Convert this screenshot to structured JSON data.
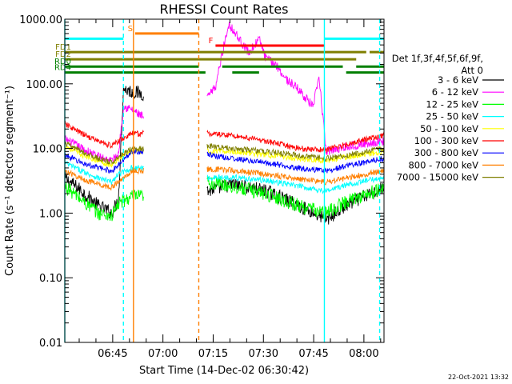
{
  "chart_data": {
    "type": "line",
    "title": "RHESSI Count Rates",
    "xlabel": "Start Time (14-Dec-02 06:30:42)",
    "ylabel": "Count Rate (s⁻¹ detector segment⁻¹)",
    "yscale": "log",
    "ylim": [
      0.01,
      1000
    ],
    "xlim_minutes": [
      0,
      95.3
    ],
    "x_ticks": [
      "06:45",
      "07:00",
      "07:15",
      "07:30",
      "07:45",
      "08:00"
    ],
    "y_ticks": [
      "0.01",
      "0.10",
      "1.00",
      "10.00",
      "100.00",
      "1000.00"
    ],
    "grid": false,
    "legend_placement": "right",
    "legend_header": [
      "Det 1f,3f,4f,5f,6f,9f,",
      "Att 0"
    ],
    "footer_date": "22-Oct-2021 13:32",
    "data_gaps": [
      [
        23.5,
        42.5
      ]
    ],
    "series": [
      {
        "name": "3 - 6 keV",
        "color": "#000000",
        "points": [
          [
            0,
            3.5
          ],
          [
            5,
            2.2
          ],
          [
            10,
            1.3
          ],
          [
            14,
            1.0
          ],
          [
            16,
            1.6
          ],
          [
            17.5,
            85
          ],
          [
            20,
            75
          ],
          [
            23.5,
            70
          ],
          [
            42.5,
            2.2
          ],
          [
            50,
            2.8
          ],
          [
            60,
            2.2
          ],
          [
            70,
            1.3
          ],
          [
            78,
            0.8
          ],
          [
            85,
            1.4
          ],
          [
            95.3,
            2.5
          ]
        ]
      },
      {
        "name": "6 - 12 keV",
        "color": "#ff00ff",
        "points": [
          [
            0,
            14
          ],
          [
            5,
            10
          ],
          [
            10,
            7.5
          ],
          [
            14,
            6.5
          ],
          [
            16,
            8
          ],
          [
            17.5,
            45
          ],
          [
            20,
            40
          ],
          [
            23.5,
            30
          ],
          [
            42.5,
            60
          ],
          [
            45,
            90
          ],
          [
            47,
            300
          ],
          [
            49,
            850
          ],
          [
            52,
            500
          ],
          [
            55,
            300
          ],
          [
            58,
            500
          ],
          [
            60,
            250
          ],
          [
            63,
            200
          ],
          [
            66,
            120
          ],
          [
            70,
            80
          ],
          [
            72,
            60
          ],
          [
            74,
            45
          ],
          [
            76,
            120
          ],
          [
            78,
            9
          ],
          [
            85,
            11
          ],
          [
            95.3,
            13
          ]
        ]
      },
      {
        "name": "12 - 25 keV",
        "color": "#00ff00",
        "points": [
          [
            0,
            2.6
          ],
          [
            5,
            1.6
          ],
          [
            10,
            1.0
          ],
          [
            14,
            0.9
          ],
          [
            16,
            1.4
          ],
          [
            20,
            1.8
          ],
          [
            23.5,
            1.8
          ],
          [
            42.5,
            3.0
          ],
          [
            50,
            2.6
          ],
          [
            60,
            2.0
          ],
          [
            70,
            1.3
          ],
          [
            78,
            1.0
          ],
          [
            85,
            1.6
          ],
          [
            95.3,
            2.4
          ]
        ]
      },
      {
        "name": "25 - 50 keV",
        "color": "#00ffff",
        "points": [
          [
            0,
            6
          ],
          [
            5,
            4.5
          ],
          [
            10,
            3.5
          ],
          [
            14,
            3.0
          ],
          [
            16,
            4
          ],
          [
            20,
            5
          ],
          [
            23.5,
            5
          ],
          [
            42.5,
            3.5
          ],
          [
            50,
            3.6
          ],
          [
            60,
            3.2
          ],
          [
            70,
            2.6
          ],
          [
            78,
            2.2
          ],
          [
            85,
            2.8
          ],
          [
            95.3,
            3.6
          ]
        ]
      },
      {
        "name": "50 - 100 keV",
        "color": "#ffff00",
        "points": [
          [
            0,
            11
          ],
          [
            5,
            8
          ],
          [
            10,
            6.5
          ],
          [
            14,
            5.5
          ],
          [
            16,
            7
          ],
          [
            20,
            9
          ],
          [
            23.5,
            9
          ],
          [
            42.5,
            9
          ],
          [
            50,
            9
          ],
          [
            60,
            8
          ],
          [
            70,
            7
          ],
          [
            78,
            6.5
          ],
          [
            85,
            7.5
          ],
          [
            95.3,
            9
          ]
        ]
      },
      {
        "name": "100 - 300 keV",
        "color": "#ff0000",
        "points": [
          [
            0,
            24
          ],
          [
            5,
            17
          ],
          [
            10,
            13
          ],
          [
            14,
            11
          ],
          [
            16,
            13
          ],
          [
            20,
            17
          ],
          [
            23.5,
            17
          ],
          [
            42.5,
            17
          ],
          [
            50,
            16
          ],
          [
            60,
            13
          ],
          [
            70,
            10
          ],
          [
            78,
            9.5
          ],
          [
            85,
            12
          ],
          [
            95.3,
            16
          ]
        ]
      },
      {
        "name": "300 - 800 keV",
        "color": "#0000ff",
        "points": [
          [
            0,
            8
          ],
          [
            5,
            6
          ],
          [
            10,
            5
          ],
          [
            14,
            4.5
          ],
          [
            16,
            5.5
          ],
          [
            20,
            9
          ],
          [
            23.5,
            9
          ],
          [
            42.5,
            8
          ],
          [
            50,
            7
          ],
          [
            60,
            6
          ],
          [
            70,
            5
          ],
          [
            78,
            4.5
          ],
          [
            85,
            5.5
          ],
          [
            95.3,
            7
          ]
        ]
      },
      {
        "name": "800 - 7000 keV",
        "color": "#ff7f00",
        "points": [
          [
            0,
            4.5
          ],
          [
            5,
            3.4
          ],
          [
            10,
            2.8
          ],
          [
            14,
            2.5
          ],
          [
            16,
            3
          ],
          [
            20,
            4.5
          ],
          [
            23.5,
            4.5
          ],
          [
            42.5,
            4.8
          ],
          [
            50,
            4.6
          ],
          [
            60,
            4
          ],
          [
            70,
            3.4
          ],
          [
            78,
            3
          ],
          [
            85,
            3.6
          ],
          [
            95.3,
            4.5
          ]
        ]
      },
      {
        "name": "7000 - 15000 keV",
        "color": "#7f7f00",
        "points": [
          [
            0,
            12
          ],
          [
            5,
            9
          ],
          [
            10,
            7
          ],
          [
            14,
            6
          ],
          [
            16,
            7.5
          ],
          [
            20,
            10
          ],
          [
            23.5,
            10
          ],
          [
            42.5,
            11
          ],
          [
            50,
            10
          ],
          [
            60,
            9
          ],
          [
            70,
            7.8
          ],
          [
            78,
            7
          ],
          [
            85,
            8
          ],
          [
            95.3,
            10
          ]
        ]
      }
    ],
    "state_bars": [
      {
        "label": "",
        "color": "#00ffff",
        "y": 500,
        "segments": [
          [
            0,
            17.5
          ],
          [
            77.5,
            95.3
          ]
        ]
      },
      {
        "label": "S",
        "color": "#ff7f00",
        "y": 600,
        "segments": [
          [
            21,
            40
          ]
        ]
      },
      {
        "label": "F",
        "color": "#ff0000",
        "y": 390,
        "segments": [
          [
            45,
            77.5
          ]
        ]
      },
      {
        "label": "FD1",
        "color": "#7f7f00",
        "y": 310,
        "segments": [
          [
            0,
            90
          ],
          [
            91,
            95.3
          ]
        ]
      },
      {
        "label": "FD2",
        "color": "#7f7f00",
        "y": 240,
        "segments": [
          [
            0,
            87
          ]
        ]
      },
      {
        "label": "RD0",
        "color": "#007f00",
        "y": 185,
        "segments": [
          [
            0,
            40
          ],
          [
            47,
            83
          ],
          [
            87,
            95.3
          ]
        ]
      },
      {
        "label": "RD4",
        "color": "#007f00",
        "y": 150,
        "segments": [
          [
            0,
            42
          ],
          [
            50,
            58
          ],
          [
            84,
            95.3
          ]
        ]
      }
    ],
    "vertical_markers": [
      {
        "x": 0,
        "color": "#00ffff",
        "style": "solid"
      },
      {
        "x": 17.5,
        "color": "#00ffff",
        "style": "dashed"
      },
      {
        "x": 20.5,
        "color": "#ff7f00",
        "style": "solid"
      },
      {
        "x": 40,
        "color": "#ff7f00",
        "style": "dashed"
      },
      {
        "x": 77.5,
        "color": "#00ffff",
        "style": "solid"
      },
      {
        "x": 94,
        "color": "#00ffff",
        "style": "dashed"
      }
    ]
  }
}
